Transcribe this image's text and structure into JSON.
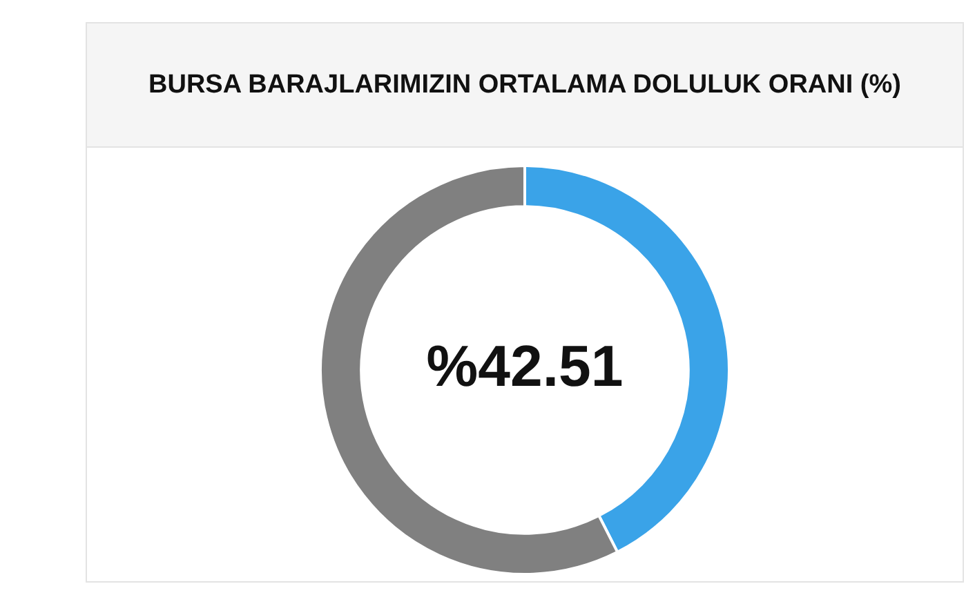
{
  "chart_data": {
    "type": "donut",
    "title": "BURSA BARAJLARIMIZIN ORTALAMA DOLULUK ORANI (%)",
    "categories": [
      null,
      null
    ],
    "values": [
      42.51,
      57.49
    ],
    "colors": [
      "#3aa3e8",
      "#808080"
    ],
    "value_labels": [
      "%42.51",
      null
    ],
    "legend": false
  }
}
